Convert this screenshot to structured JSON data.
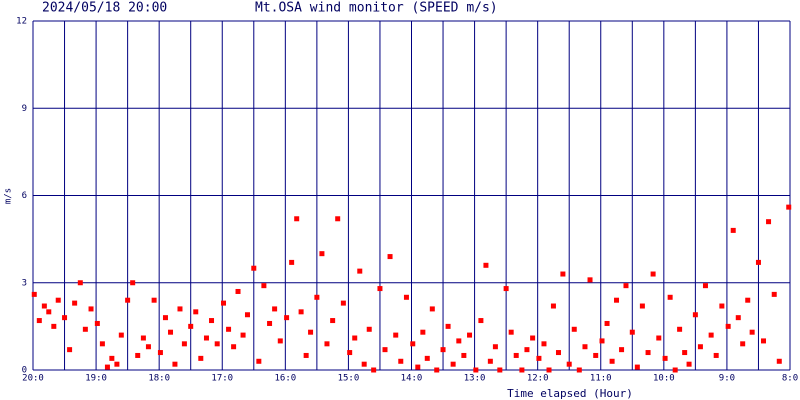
{
  "chart_data": {
    "type": "scatter",
    "subtitle": "2024/05/18 20:00",
    "title": "Mt.OSA wind monitor (SPEED m/s)",
    "ylabel": "m/s",
    "xlabel": "Time elapsed (Hour)",
    "color": "#ff0000",
    "grid_color": "#000080",
    "xlim": [
      0,
      12
    ],
    "ylim": [
      0,
      12
    ],
    "yticks": [
      0,
      3,
      6,
      9,
      12
    ],
    "xticks": [
      {
        "value": 0,
        "label": "20:0"
      },
      {
        "value": 1,
        "label": "19:0"
      },
      {
        "value": 2,
        "label": "18:0"
      },
      {
        "value": 3,
        "label": "17:0"
      },
      {
        "value": 4,
        "label": "16:0"
      },
      {
        "value": 5,
        "label": "15:0"
      },
      {
        "value": 6,
        "label": "14:0"
      },
      {
        "value": 7,
        "label": "13:0"
      },
      {
        "value": 8,
        "label": "12:0"
      },
      {
        "value": 9,
        "label": "11:0"
      },
      {
        "value": 10,
        "label": "10:0"
      },
      {
        "value": 11,
        "label": "9:0"
      },
      {
        "value": 12,
        "label": "8:0"
      }
    ],
    "xminor": [
      0.5,
      1.5,
      2.5,
      3.5,
      4.5,
      5.5,
      6.5,
      7.5,
      8.5,
      9.5,
      10.5,
      11.5
    ],
    "grid": true,
    "x": [
      0.02,
      0.1,
      0.18,
      0.25,
      0.33,
      0.4,
      0.5,
      0.58,
      0.66,
      0.75,
      0.83,
      0.92,
      1.02,
      1.1,
      1.18,
      1.25,
      1.33,
      1.4,
      1.5,
      1.58,
      1.66,
      1.75,
      1.83,
      1.92,
      2.02,
      2.1,
      2.18,
      2.25,
      2.33,
      2.4,
      2.5,
      2.58,
      2.66,
      2.75,
      2.83,
      2.92,
      3.02,
      3.1,
      3.18,
      3.25,
      3.33,
      3.4,
      3.5,
      3.58,
      3.66,
      3.75,
      3.83,
      3.92,
      4.02,
      4.1,
      4.18,
      4.25,
      4.33,
      4.4,
      4.5,
      4.58,
      4.66,
      4.75,
      4.83,
      4.92,
      5.02,
      5.1,
      5.18,
      5.25,
      5.33,
      5.4,
      5.5,
      5.58,
      5.66,
      5.75,
      5.83,
      5.92,
      6.02,
      6.1,
      6.18,
      6.25,
      6.33,
      6.4,
      6.5,
      6.58,
      6.66,
      6.75,
      6.83,
      6.92,
      7.02,
      7.1,
      7.18,
      7.25,
      7.33,
      7.4,
      7.5,
      7.58,
      7.66,
      7.75,
      7.83,
      7.92,
      8.02,
      8.1,
      8.18,
      8.25,
      8.33,
      8.4,
      8.5,
      8.58,
      8.66,
      8.75,
      8.83,
      8.92,
      9.02,
      9.1,
      9.18,
      9.25,
      9.33,
      9.4,
      9.5,
      9.58,
      9.66,
      9.75,
      9.83,
      9.92,
      10.02,
      10.1,
      10.18,
      10.25,
      10.33,
      10.4,
      10.5,
      10.58,
      10.66,
      10.75,
      10.83,
      10.92,
      11.02,
      11.1,
      11.18,
      11.25,
      11.33,
      11.4,
      11.5,
      11.58,
      11.66,
      11.75,
      11.83,
      11.98
    ],
    "values": [
      2.6,
      1.7,
      2.2,
      2.0,
      1.5,
      2.4,
      1.8,
      0.7,
      2.3,
      3.0,
      1.4,
      2.1,
      1.6,
      0.9,
      0.1,
      0.4,
      0.2,
      1.2,
      2.4,
      3.0,
      0.5,
      1.1,
      0.8,
      2.4,
      0.6,
      1.8,
      1.3,
      0.2,
      2.1,
      0.9,
      1.5,
      2.0,
      0.4,
      1.1,
      1.7,
      0.9,
      2.3,
      1.4,
      0.8,
      2.7,
      1.2,
      1.9,
      3.5,
      0.3,
      2.9,
      1.6,
      2.1,
      1.0,
      1.8,
      3.7,
      5.2,
      2.0,
      0.5,
      1.3,
      2.5,
      4.0,
      0.9,
      1.7,
      5.2,
      2.3,
      0.6,
      1.1,
      3.4,
      0.2,
      1.4,
      0.0,
      2.8,
      0.7,
      3.9,
      1.2,
      0.3,
      2.5,
      0.9,
      0.1,
      1.3,
      0.4,
      2.1,
      0.0,
      0.7,
      1.5,
      0.2,
      1.0,
      0.5,
      1.2,
      0.0,
      1.7,
      3.6,
      0.3,
      0.8,
      0.0,
      2.8,
      1.3,
      0.5,
      0.0,
      0.7,
      1.1,
      0.4,
      0.9,
      0.0,
      2.2,
      0.6,
      3.3,
      0.2,
      1.4,
      0.0,
      0.8,
      3.1,
      0.5,
      1.0,
      1.6,
      0.3,
      2.4,
      0.7,
      2.9,
      1.3,
      0.1,
      2.2,
      0.6,
      3.3,
      1.1,
      0.4,
      2.5,
      0.0,
      1.4,
      0.6,
      0.2,
      1.9,
      0.8,
      2.9,
      1.2,
      0.5,
      2.2,
      1.5,
      4.8,
      1.8,
      0.9,
      2.4,
      1.3,
      3.7,
      1.0,
      5.1,
      2.6,
      0.3,
      5.6
    ]
  }
}
